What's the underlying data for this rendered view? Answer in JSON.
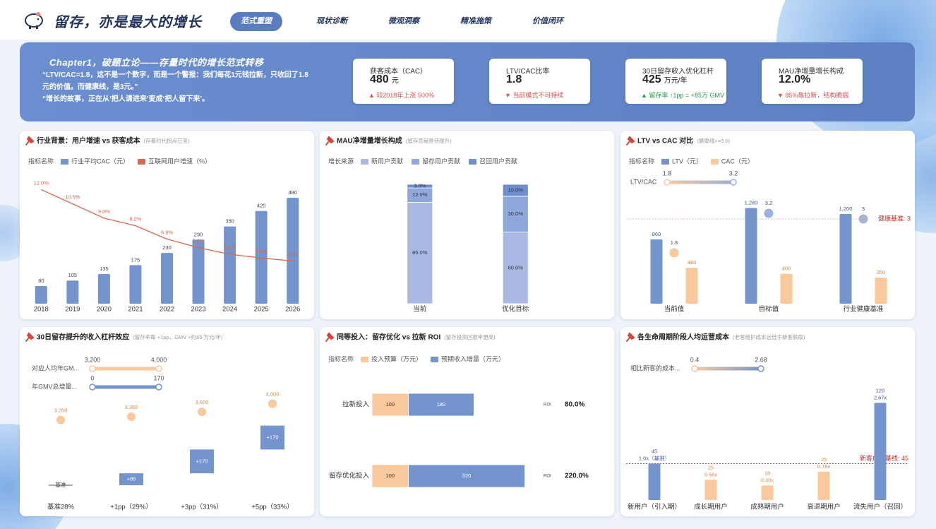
{
  "header": {
    "title": "留存，亦是最大的增长"
  },
  "nav": {
    "items": [
      "范式重塑",
      "现状诊断",
      "微观洞察",
      "精准施策",
      "价值闭环"
    ]
  },
  "banner": {
    "title": "Chapter1，破题立论——存量时代的增长范式转移",
    "lines": [
      "“LTV/CAC=1.8，这不是一个数字，而是一个警报：我们每花1元钱拉新，只收回了1.8元的价值。而健康线，是3元。”",
      "“增长的故事，正在从‘把人请进来’变成‘把人留下来’。"
    ]
  },
  "kpis": [
    {
      "label": "获客成本（CAC）",
      "value": 480,
      "unit": "元",
      "note": "▲ 较2018年上涨 500%",
      "note_color": "#d9534f"
    },
    {
      "label": "LTV/CAC比率",
      "value": 1.8,
      "note": "▼ 当前模式不可持续",
      "note_color": "#d9534f"
    },
    {
      "label": "30日留存收入优化杠杆",
      "value": 425,
      "unit": "万元/年",
      "note": "▲ 留存率 ↑1pp = +85万 GMV",
      "note_color": "#2e9a4a"
    },
    {
      "label": "MAU净增量增长构成",
      "value": "12.0%",
      "note": "▼ 85%靠拉新，结构脆弱",
      "note_color": "#d9534f"
    }
  ],
  "chart_data": [
    {
      "type": "combo",
      "title": "行业背景：用户增速 vs 获客成本",
      "subtitle": "(存量时代拐点已至)",
      "legend_title": "指标名称",
      "categories": [
        "2018",
        "2019",
        "2020",
        "2021",
        "2022",
        "2023",
        "2024",
        "2025",
        "2026"
      ],
      "ylim": [
        0,
        560
      ],
      "y2lim": [
        0,
        13
      ],
      "series": [
        {
          "name": "行业平均CAC（元）",
          "kind": "bar",
          "color": "#7394cc",
          "values": [
            80,
            105,
            135,
            175,
            230,
            290,
            350,
            420,
            480
          ]
        },
        {
          "name": "互联网用户增速（%）",
          "kind": "line",
          "axis": "y2",
          "color": "#d9674e",
          "values": [
            12.0,
            10.5,
            9.0,
            8.2,
            6.8,
            5.9,
            5.2,
            4.8,
            4.5
          ],
          "value_labels": [
            "12.0%",
            "10.5%",
            "9.0%",
            "8.2%",
            "6.8%",
            "5.9%",
            "5.2%",
            "4.8%",
            "4.5%"
          ]
        }
      ]
    },
    {
      "type": "stacked",
      "title": "MAU净增量增长构成",
      "subtitle": "(留存贡献亟待提升)",
      "legend_title": "增长来源",
      "categories": [
        "当前",
        "优化目标"
      ],
      "ylim": [
        0,
        100
      ],
      "series": [
        {
          "name": "新用户贡献",
          "color": "#a9b9e3",
          "values": [
            85,
            60
          ],
          "value_labels": [
            "85.0%",
            "60.0%"
          ]
        },
        {
          "name": "留存用户贡献",
          "color": "#8ea7dc",
          "values": [
            12,
            30
          ],
          "value_labels": [
            "12.0%",
            "30.0%"
          ]
        },
        {
          "name": "召回用户贡献",
          "color": "#6f8fcc",
          "values": [
            3,
            10
          ],
          "value_labels": [
            "3.0%",
            "10.0%"
          ]
        }
      ]
    },
    {
      "type": "combo",
      "title": "LTV vs CAC 对比",
      "subtitle": "(健康线>=3.0)",
      "legend_title": "指标名称",
      "categories": [
        "当前值",
        "目标值",
        "行业健康基准"
      ],
      "ylim": [
        0,
        1700
      ],
      "y2lim": [
        0,
        4.5
      ],
      "series": [
        {
          "name": "LTV（元）",
          "kind": "bar",
          "color": "#7394cc",
          "values": [
            860,
            1280,
            1200
          ],
          "value_labels": [
            "860",
            "1,280",
            "1,200"
          ]
        },
        {
          "name": "CAC（元）",
          "kind": "bar",
          "color": "#f9c89b",
          "values": [
            480,
            400,
            350
          ]
        },
        {
          "kind": "scatter",
          "axis": "y2",
          "values": [
            1.8,
            3.2,
            3
          ]
        }
      ],
      "visual_maps": [
        {
          "label": "LTV/CAC",
          "range": [
            1.8,
            3.2
          ],
          "colors": [
            "#f9c89b",
            "#9bb0e0"
          ]
        }
      ],
      "mark_line": {
        "label": "健康基准: 3",
        "value": 3,
        "color": "#c9302c"
      }
    },
    {
      "type": "waterfall",
      "title": "30日留存提升的收入杠杆效应",
      "subtitle": "(留存率每 +1pp，GMV +约85 万元/年)",
      "categories": [
        "基准28%",
        "+1pp（29%）",
        "+3pp（31%）",
        "+5pp（33%）"
      ],
      "ylim": [
        0,
        640
      ],
      "y2lim": [
        0,
        4400
      ],
      "series": [
        {
          "kind": "bar",
          "color": "#7394cc",
          "values": [
            0,
            85,
            170,
            170
          ],
          "value_labels": [
            "基准",
            "+85",
            "+170",
            "+170"
          ]
        },
        {
          "kind": "scatter",
          "axis": "y2",
          "color": "#f9c89b",
          "values": [
            3200,
            3360,
            3600,
            4000
          ],
          "value_labels": [
            "3,200",
            "3,360",
            "3,600",
            "4,000"
          ]
        }
      ],
      "visual_maps": [
        {
          "label": "对应人均年GM...",
          "range": [
            {
              "value": 3200,
              "label": "3,200"
            },
            {
              "value": 4000,
              "label": "4,000"
            }
          ],
          "colors": [
            "#f9c89b",
            "#f9c89b"
          ]
        },
        {
          "label": "年GMV总增量...",
          "range": [
            0,
            170
          ],
          "colors": [
            "#7394cc",
            "#7394cc"
          ]
        }
      ]
    },
    {
      "type": "hbar",
      "title": "同等投入：留存优化 vs 拉新 ROI",
      "subtitle": "(留存投资回报率更高)",
      "legend_title": "指标名称",
      "categories": [
        "拉新投入",
        "留存优化投入"
      ],
      "xlim": [
        0,
        450
      ],
      "series": [
        {
          "name": "投入预算（万元）",
          "color": "#f9c89b",
          "values": [
            100,
            100
          ]
        },
        {
          "name": "预期收入增量（万元）",
          "color": "#7394cc",
          "values": [
            180,
            320
          ]
        }
      ],
      "roi": {
        "label": "ROI",
        "values": [
          80,
          220
        ],
        "value_labels": [
          "80.0%",
          "220.0%"
        ]
      }
    },
    {
      "type": "bar",
      "title": "各生命周期阶段人均运营成本",
      "subtitle": "(老客维护成本远低于新客获取)",
      "categories": [
        "新用户（引入期）",
        "成长期用户",
        "成熟期用户",
        "衰退期用户",
        "流失用户（召回）"
      ],
      "ylim": [
        0,
        150
      ],
      "series": [
        {
          "values": [
            45,
            25,
            18,
            35,
            120
          ],
          "colors": [
            "#7394cc",
            "#f9c89b",
            "#f9c89b",
            "#f9c89b",
            "#7394cc"
          ]
        },
        {
          "kind": "label",
          "values": [
            1.0,
            0.56,
            0.4,
            0.78,
            2.67
          ],
          "value_labels": [
            "1.0x（基准）",
            "0.56x",
            "0.40x",
            "0.78x",
            "2.67x"
          ]
        }
      ],
      "visual_maps": [
        {
          "label": "相比新客的成本...",
          "range": [
            0.4,
            2.68
          ],
          "colors": [
            "#f9c89b",
            "#7394cc"
          ]
        }
      ],
      "mark_line": {
        "label": "新客成本基线: 45",
        "value": 45,
        "color": "#c9302c"
      }
    }
  ]
}
